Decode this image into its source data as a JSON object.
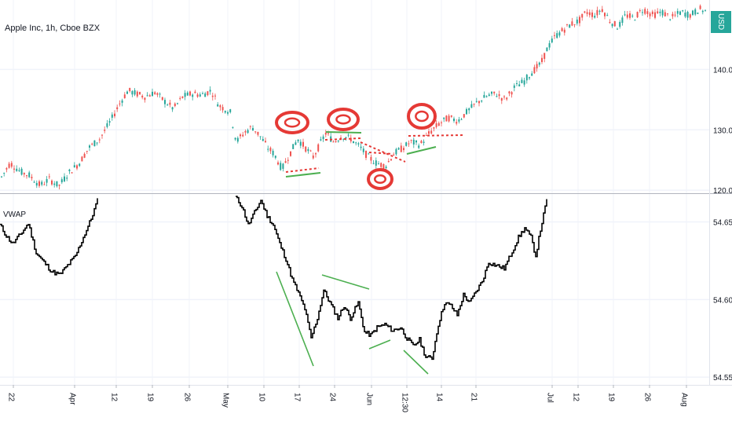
{
  "chart_data": [
    {
      "type": "candlestick",
      "title": "Apple Inc, 1h, Cboe BZX",
      "currency_label": "USD",
      "y_ticks": [
        "140.00",
        "130.00",
        "120.00"
      ],
      "y_tick_values": [
        140,
        130,
        120
      ],
      "ylim": [
        119.5,
        151.5
      ],
      "series_points": [
        {
          "t": 0,
          "v": 122.0
        },
        {
          "t": 12,
          "v": 124.5
        },
        {
          "t": 26,
          "v": 123.0
        },
        {
          "t": 36,
          "v": 122.5
        },
        {
          "t": 50,
          "v": 120.8
        },
        {
          "t": 62,
          "v": 121.8
        },
        {
          "t": 74,
          "v": 120.7
        },
        {
          "t": 86,
          "v": 122.8
        },
        {
          "t": 100,
          "v": 124.5
        },
        {
          "t": 112,
          "v": 127.0
        },
        {
          "t": 126,
          "v": 128.5
        },
        {
          "t": 140,
          "v": 131.5
        },
        {
          "t": 152,
          "v": 134.5
        },
        {
          "t": 162,
          "v": 136.5
        },
        {
          "t": 172,
          "v": 136.0
        },
        {
          "t": 184,
          "v": 135.5
        },
        {
          "t": 196,
          "v": 136.2
        },
        {
          "t": 208,
          "v": 134.8
        },
        {
          "t": 220,
          "v": 133.5
        },
        {
          "t": 232,
          "v": 135.5
        },
        {
          "t": 244,
          "v": 136.0
        },
        {
          "t": 256,
          "v": 135.8
        },
        {
          "t": 268,
          "v": 136.5
        },
        {
          "t": 278,
          "v": 134.0
        },
        {
          "t": 292,
          "v": 133.0
        },
        {
          "t": 300,
          "v": 128.0
        },
        {
          "t": 310,
          "v": 129.5
        },
        {
          "t": 320,
          "v": 130.5
        },
        {
          "t": 330,
          "v": 129.0
        },
        {
          "t": 340,
          "v": 127.0
        },
        {
          "t": 348,
          "v": 126.0
        },
        {
          "t": 358,
          "v": 123.5
        },
        {
          "t": 368,
          "v": 126.0
        },
        {
          "t": 378,
          "v": 128.5
        },
        {
          "t": 388,
          "v": 127.0
        },
        {
          "t": 398,
          "v": 125.5
        },
        {
          "t": 406,
          "v": 127.5
        },
        {
          "t": 414,
          "v": 129.5
        },
        {
          "t": 424,
          "v": 128.0
        },
        {
          "t": 434,
          "v": 129.0
        },
        {
          "t": 446,
          "v": 128.5
        },
        {
          "t": 458,
          "v": 127.0
        },
        {
          "t": 468,
          "v": 125.5
        },
        {
          "t": 478,
          "v": 124.5
        },
        {
          "t": 490,
          "v": 124.0
        },
        {
          "t": 500,
          "v": 126.0
        },
        {
          "t": 512,
          "v": 127.0
        },
        {
          "t": 522,
          "v": 128.0
        },
        {
          "t": 534,
          "v": 127.5
        },
        {
          "t": 546,
          "v": 129.5
        },
        {
          "t": 558,
          "v": 131.0
        },
        {
          "t": 570,
          "v": 132.0
        },
        {
          "t": 582,
          "v": 131.5
        },
        {
          "t": 594,
          "v": 133.0
        },
        {
          "t": 606,
          "v": 134.5
        },
        {
          "t": 618,
          "v": 135.5
        },
        {
          "t": 630,
          "v": 136.0
        },
        {
          "t": 642,
          "v": 135.0
        },
        {
          "t": 654,
          "v": 137.0
        },
        {
          "t": 666,
          "v": 138.0
        },
        {
          "t": 676,
          "v": 139.5
        },
        {
          "t": 688,
          "v": 141.0
        },
        {
          "t": 696,
          "v": 143.5
        },
        {
          "t": 706,
          "v": 145.5
        },
        {
          "t": 716,
          "v": 146.5
        },
        {
          "t": 726,
          "v": 147.5
        },
        {
          "t": 736,
          "v": 148.0
        },
        {
          "t": 746,
          "v": 149.5
        },
        {
          "t": 756,
          "v": 149.0
        },
        {
          "t": 766,
          "v": 150.0
        },
        {
          "t": 776,
          "v": 148.0
        },
        {
          "t": 786,
          "v": 147.0
        },
        {
          "t": 796,
          "v": 149.0
        },
        {
          "t": 806,
          "v": 148.5
        },
        {
          "t": 818,
          "v": 150.0
        },
        {
          "t": 830,
          "v": 149.0
        },
        {
          "t": 842,
          "v": 149.5
        },
        {
          "t": 854,
          "v": 148.5
        },
        {
          "t": 866,
          "v": 149.5
        },
        {
          "t": 878,
          "v": 149.0
        },
        {
          "t": 890,
          "v": 150.0
        },
        {
          "t": 900,
          "v": 149.5
        }
      ]
    },
    {
      "type": "line",
      "title": "VWAP",
      "y_ticks": [
        "54.65",
        "54.60",
        "54.55"
      ],
      "y_tick_values": [
        54.65,
        54.6,
        54.55
      ],
      "ylim": [
        54.545,
        54.668
      ],
      "series_points": [
        {
          "t": 0,
          "v": 54.648
        },
        {
          "t": 8,
          "v": 54.641
        },
        {
          "t": 16,
          "v": 54.636
        },
        {
          "t": 26,
          "v": 54.642
        },
        {
          "t": 36,
          "v": 54.649
        },
        {
          "t": 46,
          "v": 54.63
        },
        {
          "t": 56,
          "v": 54.624
        },
        {
          "t": 66,
          "v": 54.618
        },
        {
          "t": 76,
          "v": 54.616
        },
        {
          "t": 86,
          "v": 54.622
        },
        {
          "t": 96,
          "v": 54.628
        },
        {
          "t": 106,
          "v": 54.64
        },
        {
          "t": 116,
          "v": 54.652
        },
        {
          "t": 124,
          "v": 54.664
        },
        {
          "t": 300,
          "v": 54.666
        },
        {
          "t": 308,
          "v": 54.66
        },
        {
          "t": 316,
          "v": 54.648
        },
        {
          "t": 324,
          "v": 54.656
        },
        {
          "t": 332,
          "v": 54.664
        },
        {
          "t": 340,
          "v": 54.654
        },
        {
          "t": 348,
          "v": 54.648
        },
        {
          "t": 356,
          "v": 54.636
        },
        {
          "t": 364,
          "v": 54.626
        },
        {
          "t": 372,
          "v": 54.613
        },
        {
          "t": 380,
          "v": 54.604
        },
        {
          "t": 388,
          "v": 54.594
        },
        {
          "t": 396,
          "v": 54.575
        },
        {
          "t": 404,
          "v": 54.588
        },
        {
          "t": 412,
          "v": 54.606
        },
        {
          "t": 420,
          "v": 54.598
        },
        {
          "t": 430,
          "v": 54.588
        },
        {
          "t": 438,
          "v": 54.596
        },
        {
          "t": 446,
          "v": 54.588
        },
        {
          "t": 456,
          "v": 54.598
        },
        {
          "t": 464,
          "v": 54.579
        },
        {
          "t": 472,
          "v": 54.577
        },
        {
          "t": 480,
          "v": 54.582
        },
        {
          "t": 490,
          "v": 54.584
        },
        {
          "t": 500,
          "v": 54.58
        },
        {
          "t": 510,
          "v": 54.582
        },
        {
          "t": 518,
          "v": 54.575
        },
        {
          "t": 526,
          "v": 54.57
        },
        {
          "t": 534,
          "v": 54.574
        },
        {
          "t": 542,
          "v": 54.563
        },
        {
          "t": 550,
          "v": 54.562
        },
        {
          "t": 558,
          "v": 54.584
        },
        {
          "t": 566,
          "v": 54.598
        },
        {
          "t": 574,
          "v": 54.596
        },
        {
          "t": 582,
          "v": 54.59
        },
        {
          "t": 590,
          "v": 54.603
        },
        {
          "t": 598,
          "v": 54.598
        },
        {
          "t": 606,
          "v": 54.605
        },
        {
          "t": 614,
          "v": 54.612
        },
        {
          "t": 622,
          "v": 54.624
        },
        {
          "t": 632,
          "v": 54.622
        },
        {
          "t": 642,
          "v": 54.62
        },
        {
          "t": 652,
          "v": 54.631
        },
        {
          "t": 660,
          "v": 54.64
        },
        {
          "t": 668,
          "v": 54.646
        },
        {
          "t": 676,
          "v": 54.64
        },
        {
          "t": 682,
          "v": 54.628
        },
        {
          "t": 688,
          "v": 54.645
        },
        {
          "t": 696,
          "v": 54.664
        }
      ]
    }
  ],
  "x_axis": {
    "ticks": [
      "22",
      "Apr",
      "12",
      "19",
      "26",
      "May",
      "10",
      "17",
      "24",
      "Jun",
      "12:30",
      "14",
      "21",
      "Jul",
      "12",
      "19",
      "26",
      "Aug"
    ],
    "tick_t": [
      17,
      95,
      148,
      194,
      241,
      290,
      336,
      381,
      426,
      473,
      518,
      562,
      606,
      703,
      736,
      781,
      827,
      874
    ]
  },
  "colors": {
    "up": "#26a69a",
    "down": "#ef5350",
    "line": "#000000",
    "annotation_red": "#e53935",
    "annotation_green": "#4caf50",
    "grid": "#f0f3fa"
  }
}
